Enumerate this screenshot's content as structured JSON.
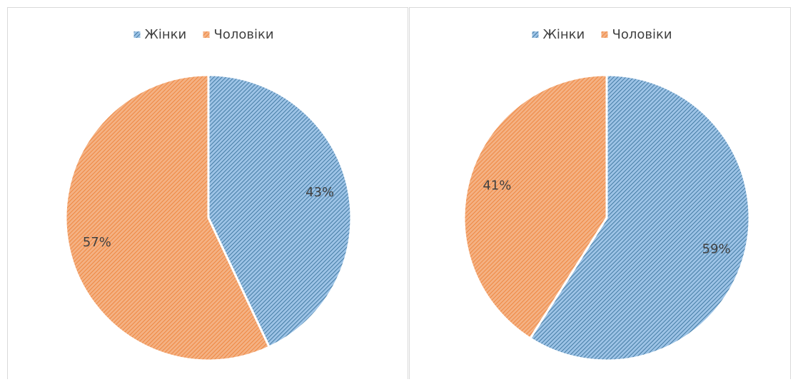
{
  "chart_data": [
    {
      "type": "pie",
      "categories": [
        "Жінки",
        "Чоловіки"
      ],
      "values": [
        43,
        57
      ],
      "value_labels": [
        "43%",
        "57%"
      ],
      "colors": [
        "#9dc3e6",
        "#f4b183"
      ],
      "hatch_colors": [
        "#2e6a94",
        "#ed7d31"
      ],
      "legend": "top"
    },
    {
      "type": "pie",
      "categories": [
        "Жінки",
        "Чоловіки"
      ],
      "values": [
        59,
        41
      ],
      "value_labels": [
        "59%",
        "41%"
      ],
      "colors": [
        "#9dc3e6",
        "#f4b183"
      ],
      "hatch_colors": [
        "#2e6a94",
        "#ed7d31"
      ],
      "legend": "top"
    }
  ]
}
